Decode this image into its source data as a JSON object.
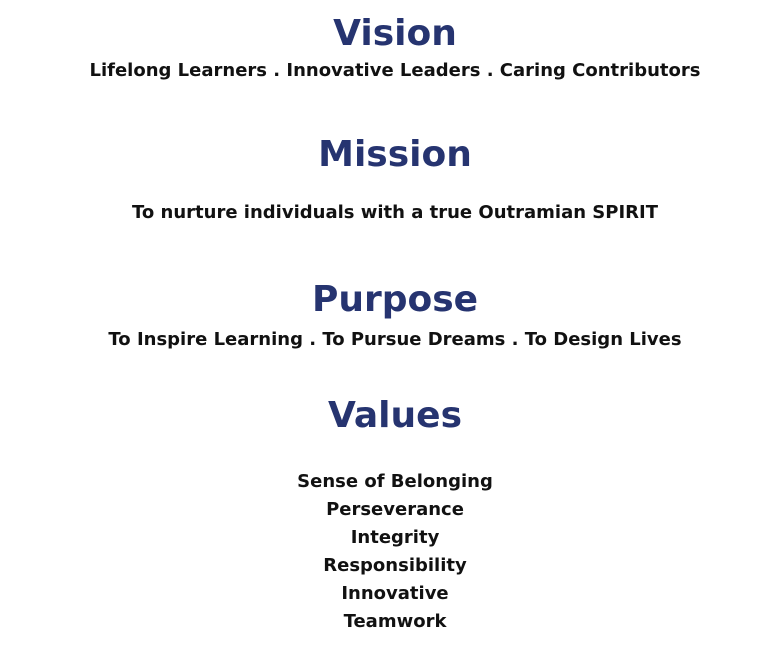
{
  "vision": {
    "title": "Vision",
    "text": "Lifelong Learners . Innovative Leaders . Caring Contributors"
  },
  "mission": {
    "title": "Mission",
    "text": "To nurture individuals with a true Outramian SPIRIT"
  },
  "purpose": {
    "title": "Purpose",
    "text": "To Inspire Learning . To Pursue Dreams . To Design Lives"
  },
  "values": {
    "title": "Values",
    "items": [
      "Sense of Belonging",
      "Perseverance",
      "Integrity",
      "Responsibility",
      "Innovative",
      "Teamwork"
    ]
  },
  "colors": {
    "heading": "#263470",
    "body_text": "#111111"
  }
}
